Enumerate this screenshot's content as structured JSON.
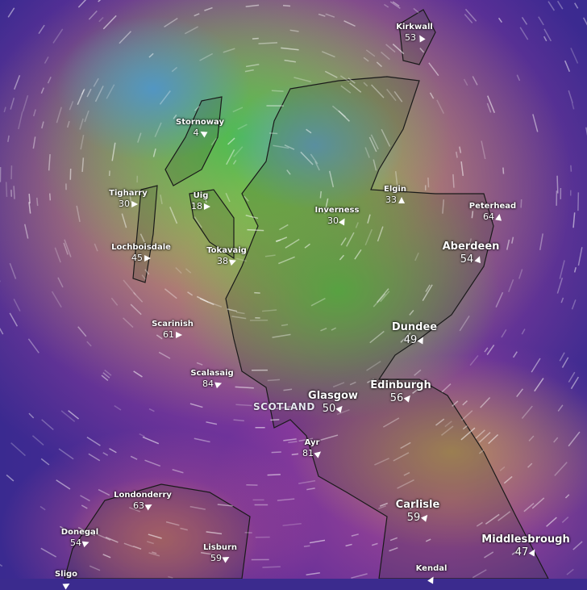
{
  "country_label": "SCOTLAND",
  "legend_colors": {
    "calm": "#4aa0c8",
    "light": "#4fbf4a",
    "moderate": "#c8b84a",
    "strong": "#c8509e",
    "very_strong": "#3a2a90"
  },
  "cities": [
    {
      "name": "Kirkwall",
      "value": "53",
      "size": "small",
      "wind_dir": -30
    },
    {
      "name": "Stornoway",
      "value": "4",
      "size": "small",
      "wind_dir": -60
    },
    {
      "name": "Tigharry",
      "value": "30",
      "size": "small",
      "wind_dir": 90
    },
    {
      "name": "Uig",
      "value": "18",
      "size": "small",
      "wind_dir": 90
    },
    {
      "name": "Inverness",
      "value": "30",
      "size": "small",
      "wind_dir": 30
    },
    {
      "name": "Elgin",
      "value": "33",
      "size": "small",
      "wind_dir": 0
    },
    {
      "name": "Peterhead",
      "value": "64",
      "size": "small",
      "wind_dir": 10
    },
    {
      "name": "Aberdeen",
      "value": "54",
      "size": "big",
      "wind_dir": 20
    },
    {
      "name": "Lochboisdale",
      "value": "45",
      "size": "small",
      "wind_dir": 90
    },
    {
      "name": "Tokavaig",
      "value": "38",
      "size": "small",
      "wind_dir": 70
    },
    {
      "name": "Scarinish",
      "value": "61",
      "size": "small",
      "wind_dir": 90
    },
    {
      "name": "Dundee",
      "value": "49",
      "size": "big",
      "wind_dir": 30
    },
    {
      "name": "Scalasaig",
      "value": "84",
      "size": "small",
      "wind_dir": 70
    },
    {
      "name": "Edinburgh",
      "value": "56",
      "size": "big",
      "wind_dir": 40
    },
    {
      "name": "Glasgow",
      "value": "50",
      "size": "big",
      "wind_dir": 40
    },
    {
      "name": "Ayr",
      "value": "81",
      "size": "small",
      "wind_dir": 50
    },
    {
      "name": "Londonderry",
      "value": "63",
      "size": "small",
      "wind_dir": 60
    },
    {
      "name": "Carlisle",
      "value": "59",
      "size": "big",
      "wind_dir": 40
    },
    {
      "name": "Donegal",
      "value": "54",
      "size": "small",
      "wind_dir": 70
    },
    {
      "name": "Middlesbrough",
      "value": "47",
      "size": "big",
      "wind_dir": 30
    },
    {
      "name": "Lisburn",
      "value": "59",
      "size": "small",
      "wind_dir": 60
    },
    {
      "name": "Kendal",
      "value": "",
      "size": "small",
      "wind_dir": 30
    },
    {
      "name": "Sligo",
      "value": "",
      "size": "small",
      "wind_dir": 60
    }
  ]
}
